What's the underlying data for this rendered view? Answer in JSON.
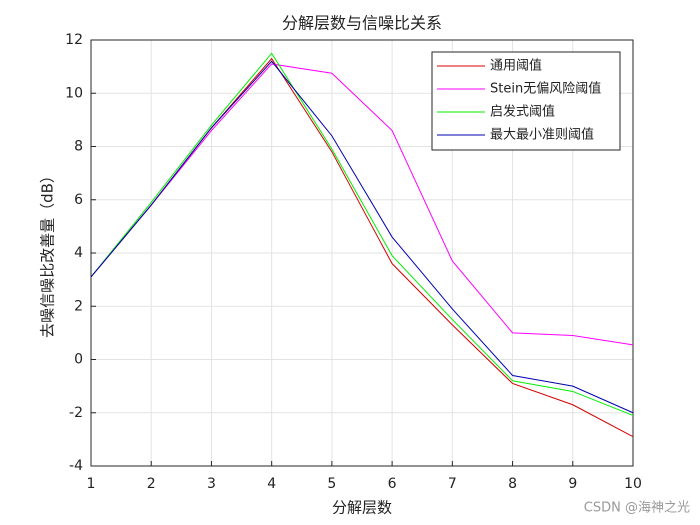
{
  "chart_data": {
    "type": "line",
    "title": "分解层数与信噪比关系",
    "x_label": "分解层数",
    "y_label": "去噪信噪比改善量（dB）",
    "x": [
      1,
      2,
      3,
      4,
      5,
      6,
      7,
      8,
      9,
      10
    ],
    "series": [
      {
        "name": "通用阈值",
        "color": "#d40000",
        "values": [
          3.1,
          5.8,
          8.7,
          11.3,
          7.8,
          3.6,
          1.3,
          -0.9,
          -1.7,
          -2.9
        ]
      },
      {
        "name": "Stein无偏风险阈值",
        "color": "#ff00ff",
        "values": [
          3.1,
          5.8,
          8.6,
          11.1,
          10.75,
          8.6,
          3.7,
          1.0,
          0.9,
          0.55
        ]
      },
      {
        "name": "启发式阈值",
        "color": "#00ee00",
        "values": [
          3.1,
          5.9,
          8.8,
          11.5,
          7.9,
          3.9,
          1.5,
          -0.8,
          -1.2,
          -2.1
        ]
      },
      {
        "name": "最大最小准则阈值",
        "color": "#0000b0",
        "values": [
          3.1,
          5.8,
          8.7,
          11.2,
          8.4,
          4.6,
          1.9,
          -0.6,
          -1.0,
          -2.0
        ]
      }
    ],
    "xlim": [
      1,
      10
    ],
    "xticks": [
      1,
      2,
      3,
      4,
      5,
      6,
      7,
      8,
      9,
      10
    ],
    "ylim": [
      -4,
      12
    ],
    "yticks": [
      -4,
      -2,
      0,
      2,
      4,
      6,
      8,
      10,
      12
    ],
    "grid": true,
    "legend": "northeast",
    "watermark": "CSDN @海神之光"
  }
}
